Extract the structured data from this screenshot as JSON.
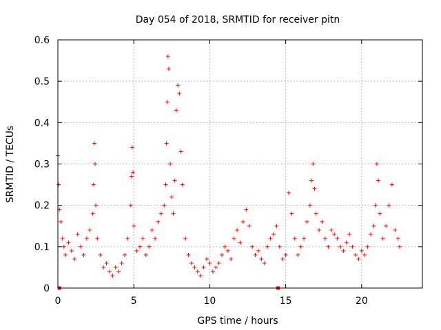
{
  "chart_data": {
    "type": "scatter",
    "title": "Day 054 of 2018, SRMTID for receiver pitn",
    "xlabel": "GPS time / hours",
    "ylabel": "SRMTID / TECUs",
    "xlim": [
      0,
      24
    ],
    "ylim": [
      0,
      0.6
    ],
    "xticks": [
      0,
      5,
      10,
      15,
      20
    ],
    "yticks": [
      0,
      0.1,
      0.2,
      0.3,
      0.4,
      0.5,
      0.6
    ],
    "xtick_labels": [
      "0",
      "5",
      "10",
      "15",
      "20"
    ],
    "ytick_labels": [
      "0",
      "0.1",
      "0.2",
      "0.3",
      "0.4",
      "0.5",
      "0.6"
    ],
    "grid": true,
    "marker": "+",
    "color": "#ff0000",
    "zero_markers_x": [
      0.1,
      14.5
    ],
    "series": [
      {
        "name": "SRMTID",
        "x": [
          0.0,
          0.05,
          0.1,
          0.2,
          0.3,
          0.4,
          0.5,
          0.7,
          0.9,
          1.1,
          1.3,
          1.5,
          1.7,
          1.9,
          2.1,
          2.3,
          2.35,
          2.4,
          2.45,
          2.5,
          2.6,
          2.8,
          3.0,
          3.2,
          3.4,
          3.6,
          3.8,
          4.0,
          4.2,
          4.4,
          4.6,
          4.8,
          4.85,
          4.9,
          4.95,
          5.0,
          5.2,
          5.4,
          5.6,
          5.8,
          6.0,
          6.2,
          6.4,
          6.6,
          6.8,
          7.0,
          7.1,
          7.15,
          7.2,
          7.25,
          7.3,
          7.4,
          7.5,
          7.6,
          7.7,
          7.8,
          7.9,
          8.0,
          8.1,
          8.2,
          8.4,
          8.6,
          8.8,
          9.0,
          9.2,
          9.4,
          9.6,
          9.8,
          10.0,
          10.2,
          10.4,
          10.6,
          10.8,
          11.0,
          11.2,
          11.4,
          11.6,
          11.8,
          12.0,
          12.2,
          12.4,
          12.6,
          12.8,
          13.0,
          13.2,
          13.4,
          13.6,
          13.8,
          14.0,
          14.2,
          14.4,
          14.6,
          14.8,
          15.0,
          15.2,
          15.4,
          15.6,
          15.8,
          16.0,
          16.2,
          16.4,
          16.6,
          16.7,
          16.8,
          16.9,
          17.0,
          17.2,
          17.4,
          17.6,
          17.8,
          18.0,
          18.2,
          18.4,
          18.6,
          18.8,
          19.0,
          19.2,
          19.4,
          19.6,
          19.8,
          20.0,
          20.2,
          20.4,
          20.6,
          20.8,
          20.9,
          21.0,
          21.1,
          21.2,
          21.4,
          21.6,
          21.8,
          22.0,
          22.2,
          22.4,
          22.5
        ],
        "y": [
          0.32,
          0.25,
          0.19,
          0.16,
          0.12,
          0.1,
          0.08,
          0.11,
          0.09,
          0.07,
          0.13,
          0.1,
          0.08,
          0.12,
          0.14,
          0.18,
          0.25,
          0.35,
          0.3,
          0.2,
          0.12,
          0.08,
          0.05,
          0.06,
          0.04,
          0.03,
          0.05,
          0.04,
          0.06,
          0.08,
          0.12,
          0.2,
          0.27,
          0.34,
          0.28,
          0.15,
          0.09,
          0.1,
          0.12,
          0.08,
          0.1,
          0.14,
          0.12,
          0.16,
          0.18,
          0.2,
          0.25,
          0.35,
          0.45,
          0.56,
          0.53,
          0.3,
          0.22,
          0.18,
          0.26,
          0.43,
          0.49,
          0.47,
          0.33,
          0.25,
          0.12,
          0.08,
          0.06,
          0.05,
          0.04,
          0.03,
          0.05,
          0.07,
          0.06,
          0.04,
          0.05,
          0.06,
          0.08,
          0.1,
          0.09,
          0.07,
          0.12,
          0.14,
          0.11,
          0.16,
          0.19,
          0.15,
          0.1,
          0.08,
          0.09,
          0.07,
          0.06,
          0.1,
          0.12,
          0.13,
          0.15,
          0.1,
          0.07,
          0.08,
          0.23,
          0.18,
          0.12,
          0.08,
          0.1,
          0.12,
          0.16,
          0.2,
          0.26,
          0.3,
          0.24,
          0.18,
          0.14,
          0.16,
          0.12,
          0.1,
          0.14,
          0.13,
          0.12,
          0.1,
          0.09,
          0.11,
          0.13,
          0.1,
          0.08,
          0.07,
          0.09,
          0.08,
          0.1,
          0.13,
          0.15,
          0.2,
          0.3,
          0.26,
          0.18,
          0.12,
          0.15,
          0.2,
          0.25,
          0.14,
          0.12,
          0.1
        ]
      }
    ]
  }
}
